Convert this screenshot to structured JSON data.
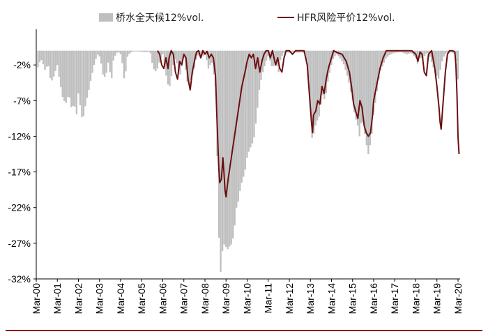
{
  "chart_data": {
    "type": "bar+line",
    "legend": {
      "bar": "桥水全天候12%vol.",
      "line": "HFR风险平价12%vol."
    },
    "y_ticks": [
      "-2%",
      "-7%",
      "-12%",
      "-17%",
      "-22%",
      "-27%",
      "-32%"
    ],
    "ylim": [
      -32,
      3
    ],
    "x_ticks": [
      "Mar-00",
      "Mar-01",
      "Mar-02",
      "Mar-03",
      "Mar-04",
      "Mar-05",
      "Mar-06",
      "Mar-07",
      "Mar-08",
      "Mar-09",
      "Mar-10",
      "Mar-11",
      "Mar-12",
      "Mar-13",
      "Mar-14",
      "Mar-15",
      "Mar-16",
      "Mar-17",
      "Mar-18",
      "Mar-19",
      "Mar-20"
    ],
    "colors": {
      "bar": "#bfbfbf",
      "line": "#6b0f10",
      "axis": "#000000",
      "rule": "#8e1a1d"
    },
    "bar_keyframes": [
      [
        0,
        0
      ],
      [
        0.1,
        -2.8
      ],
      [
        0.2,
        -1
      ],
      [
        0.3,
        -1.6
      ],
      [
        0.45,
        -3
      ],
      [
        0.55,
        -1.5
      ],
      [
        0.7,
        -4.5
      ],
      [
        0.85,
        -3.5
      ],
      [
        1,
        -2
      ],
      [
        1.1,
        -4
      ],
      [
        1.25,
        -6.5
      ],
      [
        1.4,
        -7.5
      ],
      [
        1.55,
        -6
      ],
      [
        1.7,
        -8.5
      ],
      [
        1.8,
        -7
      ],
      [
        1.9,
        -9.5
      ],
      [
        2,
        -6
      ],
      [
        2.1,
        -8
      ],
      [
        2.2,
        -10
      ],
      [
        2.35,
        -7.5
      ],
      [
        2.5,
        -5.5
      ],
      [
        2.6,
        -4
      ],
      [
        2.75,
        -2
      ],
      [
        2.9,
        -0.5
      ],
      [
        3,
        -0.8
      ],
      [
        3.1,
        -2
      ],
      [
        3.2,
        -4
      ],
      [
        3.35,
        -3
      ],
      [
        3.45,
        -1
      ],
      [
        3.55,
        -5
      ],
      [
        3.65,
        -1.5
      ],
      [
        3.8,
        -0.3
      ],
      [
        3.9,
        -0.2
      ],
      [
        4,
        -0.5
      ],
      [
        4.1,
        -2
      ],
      [
        4.2,
        -4.8
      ],
      [
        4.3,
        -1
      ],
      [
        4.45,
        -0.3
      ],
      [
        4.6,
        -0.1
      ],
      [
        4.8,
        -0.1
      ],
      [
        5.2,
        -0.2
      ],
      [
        5.4,
        -0.1
      ],
      [
        5.55,
        -2.5
      ],
      [
        5.7,
        -3
      ],
      [
        5.85,
        -1.5
      ],
      [
        6,
        -0.5
      ],
      [
        6.1,
        -2.5
      ],
      [
        6.2,
        -4
      ],
      [
        6.3,
        -5.5
      ],
      [
        6.45,
        -3
      ],
      [
        6.55,
        -1
      ],
      [
        6.7,
        -2
      ],
      [
        6.8,
        -4
      ],
      [
        6.9,
        -2
      ],
      [
        7,
        -1
      ],
      [
        7.1,
        -3
      ],
      [
        7.2,
        -5
      ],
      [
        7.35,
        -4
      ],
      [
        7.5,
        -2.5
      ],
      [
        7.6,
        -1
      ],
      [
        7.7,
        -0.5
      ],
      [
        7.85,
        -1
      ],
      [
        8,
        -0.5
      ],
      [
        8.1,
        -1.5
      ],
      [
        8.2,
        -3
      ],
      [
        8.3,
        -1
      ],
      [
        8.4,
        -3
      ],
      [
        8.5,
        -5
      ],
      [
        8.55,
        -10
      ],
      [
        8.62,
        -20
      ],
      [
        8.68,
        -28
      ],
      [
        8.72,
        -32
      ],
      [
        8.78,
        -30
      ],
      [
        8.85,
        -27.5
      ],
      [
        8.95,
        -27
      ],
      [
        9.05,
        -28
      ],
      [
        9.15,
        -27.5
      ],
      [
        9.3,
        -27
      ],
      [
        9.4,
        -25
      ],
      [
        9.5,
        -22
      ],
      [
        9.6,
        -21
      ],
      [
        9.7,
        -19
      ],
      [
        9.8,
        -18
      ],
      [
        9.9,
        -17
      ],
      [
        10,
        -15
      ],
      [
        10.1,
        -14
      ],
      [
        10.25,
        -13
      ],
      [
        10.35,
        -12
      ],
      [
        10.5,
        -8
      ],
      [
        10.6,
        -5
      ],
      [
        10.75,
        -3
      ],
      [
        10.9,
        -1.5
      ],
      [
        11,
        -0.8
      ],
      [
        11.1,
        -1.5
      ],
      [
        11.2,
        -2.5
      ],
      [
        11.35,
        -1.5
      ],
      [
        11.5,
        -3
      ],
      [
        11.6,
        -1
      ],
      [
        11.75,
        -0.3
      ],
      [
        11.9,
        -0.2
      ],
      [
        12,
        -0.3
      ],
      [
        12.2,
        -0.2
      ],
      [
        12.4,
        -0.3
      ],
      [
        12.6,
        -0.2
      ],
      [
        12.8,
        -0.5
      ],
      [
        12.9,
        -3
      ],
      [
        13,
        -8
      ],
      [
        13.05,
        -12
      ],
      [
        13.12,
        -12.5
      ],
      [
        13.2,
        -11
      ],
      [
        13.3,
        -10
      ],
      [
        13.45,
        -9
      ],
      [
        13.55,
        -6
      ],
      [
        13.7,
        -7
      ],
      [
        13.85,
        -4
      ],
      [
        14,
        -2
      ],
      [
        14.1,
        -1
      ],
      [
        14.25,
        -0.5
      ],
      [
        14.4,
        -1
      ],
      [
        14.6,
        -2
      ],
      [
        14.8,
        -4
      ],
      [
        14.9,
        -5.5
      ],
      [
        15,
        -7
      ],
      [
        15.1,
        -9
      ],
      [
        15.2,
        -10
      ],
      [
        15.3,
        -11
      ],
      [
        15.35,
        -12.5
      ],
      [
        15.45,
        -9
      ],
      [
        15.55,
        -11
      ],
      [
        15.65,
        -13
      ],
      [
        15.75,
        -14.5
      ],
      [
        15.85,
        -13
      ],
      [
        15.95,
        -11
      ],
      [
        16,
        -9
      ],
      [
        16.1,
        -7
      ],
      [
        16.2,
        -5
      ],
      [
        16.3,
        -3
      ],
      [
        16.45,
        -2
      ],
      [
        16.6,
        -1
      ],
      [
        16.8,
        -0.5
      ],
      [
        17,
        -0.3
      ],
      [
        17.3,
        -0.2
      ],
      [
        17.6,
        -0.5
      ],
      [
        17.8,
        -0.3
      ],
      [
        18,
        -1
      ],
      [
        18.1,
        -2
      ],
      [
        18.2,
        -0.5
      ],
      [
        18.3,
        -1.5
      ],
      [
        18.45,
        -0.5
      ],
      [
        18.6,
        -0.3
      ],
      [
        18.8,
        -2
      ],
      [
        18.9,
        -3
      ],
      [
        19,
        -3.5
      ],
      [
        19.1,
        -4
      ],
      [
        19.2,
        -2
      ],
      [
        19.3,
        -1
      ],
      [
        19.4,
        -0.5
      ],
      [
        19.5,
        -0.3
      ],
      [
        19.7,
        -0.2
      ],
      [
        19.85,
        -0.5
      ],
      [
        19.95,
        -2
      ],
      [
        20.0,
        -4
      ]
    ],
    "line_keyframes": [
      [
        5.75,
        0
      ],
      [
        5.85,
        -0.5
      ],
      [
        5.95,
        -2
      ],
      [
        6.05,
        -2.5
      ],
      [
        6.15,
        -1
      ],
      [
        6.25,
        -2.5
      ],
      [
        6.3,
        -1
      ],
      [
        6.4,
        0
      ],
      [
        6.5,
        -0.5
      ],
      [
        6.6,
        -3
      ],
      [
        6.7,
        -4
      ],
      [
        6.8,
        -1.5
      ],
      [
        6.9,
        -2
      ],
      [
        7,
        -0.5
      ],
      [
        7.1,
        -1
      ],
      [
        7.2,
        -4
      ],
      [
        7.3,
        -5.5
      ],
      [
        7.4,
        -3
      ],
      [
        7.5,
        -1.5
      ],
      [
        7.6,
        -0.2
      ],
      [
        7.7,
        0
      ],
      [
        7.8,
        -1
      ],
      [
        7.9,
        0
      ],
      [
        8,
        -0.5
      ],
      [
        8.1,
        -0.1
      ],
      [
        8.2,
        -1
      ],
      [
        8.3,
        -0.5
      ],
      [
        8.4,
        -1
      ],
      [
        8.5,
        -3.5
      ],
      [
        8.55,
        -8
      ],
      [
        8.6,
        -12
      ],
      [
        8.65,
        -16
      ],
      [
        8.7,
        -18.5
      ],
      [
        8.78,
        -18
      ],
      [
        8.85,
        -15
      ],
      [
        8.9,
        -17
      ],
      [
        8.95,
        -19.5
      ],
      [
        9.0,
        -20.5
      ],
      [
        9.1,
        -18
      ],
      [
        9.2,
        -16
      ],
      [
        9.3,
        -14
      ],
      [
        9.45,
        -11
      ],
      [
        9.6,
        -8
      ],
      [
        9.75,
        -5
      ],
      [
        9.9,
        -3
      ],
      [
        10,
        -1.5
      ],
      [
        10.1,
        -0.5
      ],
      [
        10.2,
        -1
      ],
      [
        10.3,
        -0.5
      ],
      [
        10.4,
        -2.5
      ],
      [
        10.5,
        -1
      ],
      [
        10.6,
        -3
      ],
      [
        10.7,
        -1.5
      ],
      [
        10.8,
        -0.5
      ],
      [
        10.9,
        0
      ],
      [
        11,
        0
      ],
      [
        11.1,
        -1
      ],
      [
        11.2,
        0
      ],
      [
        11.35,
        -2
      ],
      [
        11.45,
        -1
      ],
      [
        11.55,
        -2.5
      ],
      [
        11.65,
        -3
      ],
      [
        11.75,
        -1
      ],
      [
        11.85,
        0
      ],
      [
        12,
        0
      ],
      [
        12.15,
        -0.5
      ],
      [
        12.3,
        0
      ],
      [
        12.5,
        0
      ],
      [
        12.7,
        0
      ],
      [
        12.85,
        -2
      ],
      [
        12.95,
        -6
      ],
      [
        13.05,
        -10
      ],
      [
        13.1,
        -11.5
      ],
      [
        13.15,
        -9
      ],
      [
        13.25,
        -8.5
      ],
      [
        13.35,
        -7
      ],
      [
        13.45,
        -7.5
      ],
      [
        13.55,
        -5
      ],
      [
        13.65,
        -6
      ],
      [
        13.75,
        -4
      ],
      [
        13.85,
        -2.5
      ],
      [
        14,
        -1
      ],
      [
        14.1,
        0
      ],
      [
        14.3,
        -0.3
      ],
      [
        14.5,
        -0.5
      ],
      [
        14.7,
        -1.5
      ],
      [
        14.85,
        -3
      ],
      [
        14.95,
        -5
      ],
      [
        15.05,
        -7.5
      ],
      [
        15.15,
        -8.5
      ],
      [
        15.25,
        -9.5
      ],
      [
        15.35,
        -7
      ],
      [
        15.45,
        -8
      ],
      [
        15.55,
        -10.5
      ],
      [
        15.65,
        -11.5
      ],
      [
        15.75,
        -12
      ],
      [
        15.85,
        -11.5
      ],
      [
        15.95,
        -9
      ],
      [
        16,
        -7
      ],
      [
        16.1,
        -5.5
      ],
      [
        16.2,
        -4
      ],
      [
        16.3,
        -2.5
      ],
      [
        16.45,
        -1
      ],
      [
        16.6,
        0
      ],
      [
        16.8,
        0
      ],
      [
        17,
        0
      ],
      [
        17.3,
        0
      ],
      [
        17.6,
        0
      ],
      [
        17.8,
        0
      ],
      [
        18,
        -0.5
      ],
      [
        18.1,
        -1.5
      ],
      [
        18.2,
        -0.2
      ],
      [
        18.3,
        -0.5
      ],
      [
        18.4,
        -3
      ],
      [
        18.5,
        -3.5
      ],
      [
        18.6,
        -0.5
      ],
      [
        18.75,
        0
      ],
      [
        18.9,
        -2.5
      ],
      [
        19.0,
        -5
      ],
      [
        19.1,
        -8
      ],
      [
        19.15,
        -10
      ],
      [
        19.2,
        -11
      ],
      [
        19.3,
        -7
      ],
      [
        19.4,
        -3
      ],
      [
        19.5,
        -0.5
      ],
      [
        19.6,
        0
      ],
      [
        19.75,
        0
      ],
      [
        19.85,
        -0.2
      ],
      [
        19.9,
        -2
      ],
      [
        19.95,
        -6
      ],
      [
        20.0,
        -12
      ],
      [
        20.05,
        -14.5
      ]
    ]
  }
}
